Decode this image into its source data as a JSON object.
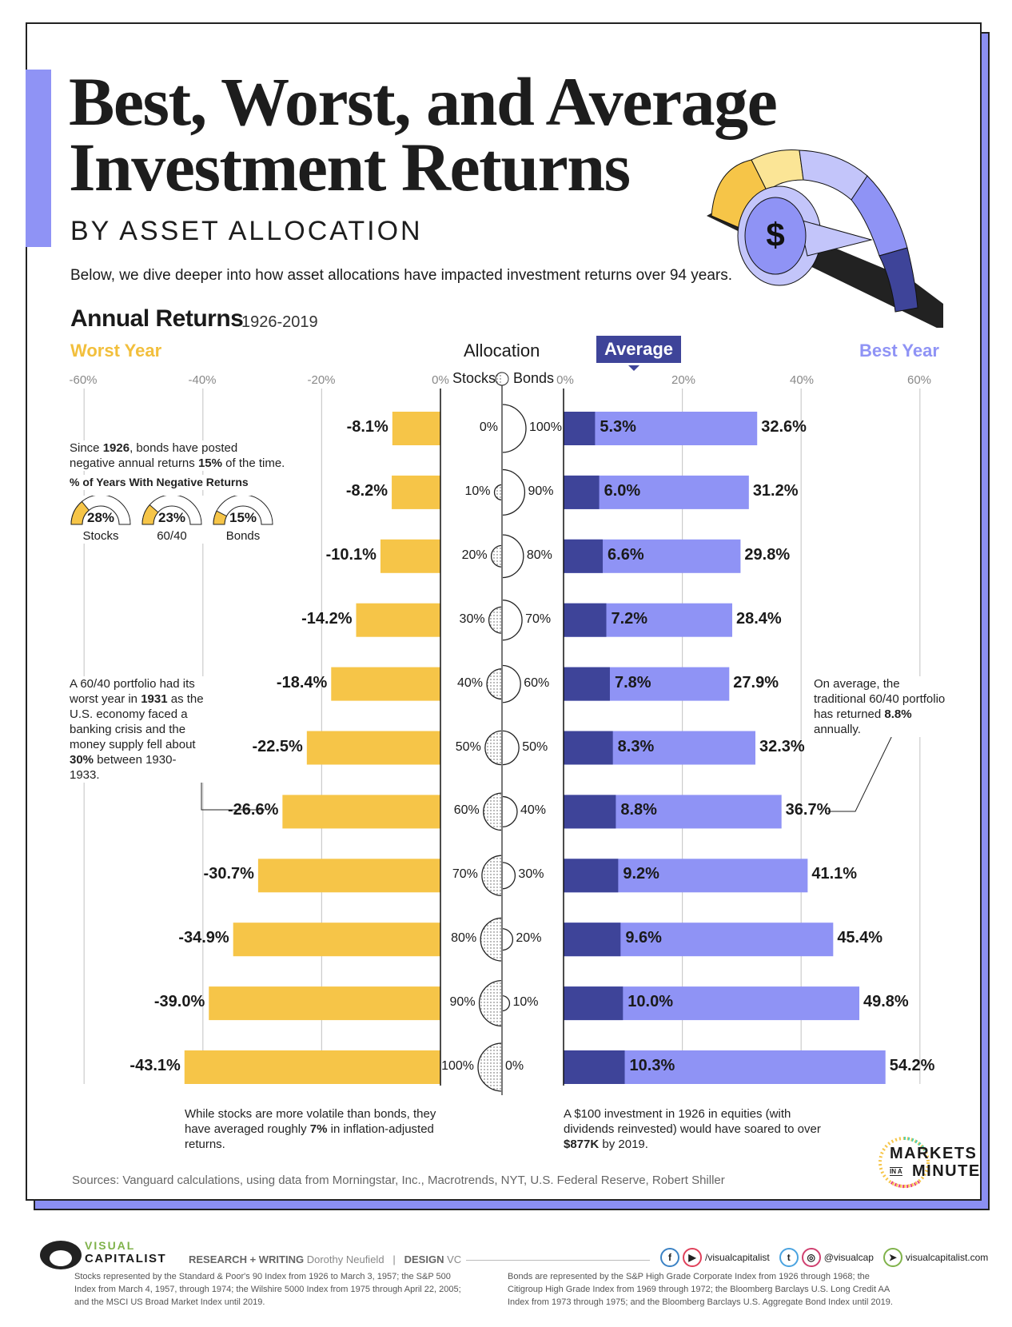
{
  "title_line1": "Best, Worst, and Average",
  "title_line2": "Investment Returns",
  "subtitle": "BY ASSET ALLOCATION",
  "intro": "Below, we dive deeper into how asset allocations have impacted investment returns over 94 years.",
  "section_title": "Annual Returns",
  "section_years": "1926-2019",
  "headers": {
    "worst": "Worst Year",
    "allocation": "Allocation",
    "average": "Average",
    "best": "Best Year",
    "stocks": "Stocks",
    "bonds": "Bonds"
  },
  "colors": {
    "worst": "#f6c548",
    "average": "#3e4499",
    "best": "#8f93f5",
    "accent": "#8f93f5"
  },
  "chart_data": {
    "type": "bar",
    "title": "Annual Returns",
    "subtitle": "1926-2019",
    "left_axis_ticks": [
      "-60%",
      "-40%",
      "-20%",
      "0%"
    ],
    "right_axis_ticks": [
      "0%",
      "20%",
      "40%",
      "60%"
    ],
    "left_xlim": [
      -60,
      0
    ],
    "right_xlim": [
      0,
      60
    ],
    "grid": true,
    "categories": [
      {
        "stocks": "0%",
        "bonds": "100%"
      },
      {
        "stocks": "10%",
        "bonds": "90%"
      },
      {
        "stocks": "20%",
        "bonds": "80%"
      },
      {
        "stocks": "30%",
        "bonds": "70%"
      },
      {
        "stocks": "40%",
        "bonds": "60%"
      },
      {
        "stocks": "50%",
        "bonds": "50%"
      },
      {
        "stocks": "60%",
        "bonds": "40%"
      },
      {
        "stocks": "70%",
        "bonds": "30%"
      },
      {
        "stocks": "80%",
        "bonds": "20%"
      },
      {
        "stocks": "90%",
        "bonds": "10%"
      },
      {
        "stocks": "100%",
        "bonds": "0%"
      }
    ],
    "stocks_share": [
      0,
      10,
      20,
      30,
      40,
      50,
      60,
      70,
      80,
      90,
      100
    ],
    "series": [
      {
        "name": "Worst Year",
        "values": [
          -8.1,
          -8.2,
          -10.1,
          -14.2,
          -18.4,
          -22.5,
          -26.6,
          -30.7,
          -34.9,
          -39.0,
          -43.1
        ],
        "labels": [
          "-8.1%",
          "-8.2%",
          "-10.1%",
          "-14.2%",
          "-18.4%",
          "-22.5%",
          "-26.6%",
          "-30.7%",
          "-34.9%",
          "-39.0%",
          "-43.1%"
        ]
      },
      {
        "name": "Average",
        "values": [
          5.3,
          6.0,
          6.6,
          7.2,
          7.8,
          8.3,
          8.8,
          9.2,
          9.6,
          10.0,
          10.3
        ],
        "labels": [
          "5.3%",
          "6.0%",
          "6.6%",
          "7.2%",
          "7.8%",
          "8.3%",
          "8.8%",
          "9.2%",
          "9.6%",
          "10.0%",
          "10.3%"
        ]
      },
      {
        "name": "Best Year",
        "values": [
          32.6,
          31.2,
          29.8,
          28.4,
          27.9,
          32.3,
          36.7,
          41.1,
          45.4,
          49.8,
          54.2
        ],
        "labels": [
          "32.6%",
          "31.2%",
          "29.8%",
          "28.4%",
          "27.9%",
          "32.3%",
          "36.7%",
          "41.1%",
          "45.4%",
          "49.8%",
          "54.2%"
        ]
      }
    ]
  },
  "notes": {
    "bonds_negative": {
      "pre": "Since ",
      "b1": "1926",
      "mid": ", bonds have posted negative annual returns ",
      "b2": "15%",
      "post": " of the time."
    },
    "gauges_title": "% of Years With Negative Returns",
    "gauges": [
      {
        "label": "Stocks",
        "value": 28,
        "text": "28%"
      },
      {
        "label": "60/40",
        "value": 23,
        "text": "23%"
      },
      {
        "label": "Bonds",
        "value": 15,
        "text": "15%"
      }
    ],
    "sixty_forty": {
      "a": "A 60/40 portfolio had its worst year in ",
      "b1": "1931",
      "c": " as the U.S. economy faced a banking crisis and the money supply fell about ",
      "b2": "30%",
      "d": " between 1930-1933."
    },
    "average_note": {
      "a": "On average, the traditional 60/40 portfolio has returned ",
      "b": "8.8%",
      "c": " annually."
    },
    "stocks_note": {
      "a": "While stocks are more volatile than bonds, they have averaged roughly ",
      "b": "7%",
      "c": " in inflation-adjusted returns."
    },
    "investment_note": {
      "a": "A $100 investment in 1926 in equities (with dividends reinvested) would have soared to over ",
      "b": "$877K",
      "c": " by 2019."
    }
  },
  "sources": "Sources: Vanguard calculations, using data from Morningstar, Inc., Macrotrends, NYT, U.S. Federal Reserve, Robert Shiller",
  "brand": {
    "markets": "MARKETS",
    "in_a": "IN A",
    "minute": "MINUTE",
    "vc1": "VISUAL",
    "vc2": "CAPITALIST"
  },
  "credits": {
    "rw_label": "RESEARCH + WRITING",
    "rw_name": "Dorothy Neufield",
    "sep": "|",
    "design_label": "DESIGN",
    "design_name": "VC"
  },
  "social": {
    "fb_yt": "/visualcapitalist",
    "tw_ig": "@visualcap",
    "web": "visualcapitalist.com"
  },
  "fine_print": {
    "stocks": "Stocks represented by the Standard & Poor's 90 Index from 1926 to March 3, 1957; the S&P 500 Index from March 4, 1957, through 1974; the Wilshire 5000 Index from 1975 through April 22, 2005; and the MSCI US Broad Market Index until 2019.",
    "bonds": "Bonds are represented by the S&P High Grade Corporate Index from 1926 through 1968; the Citigroup High Grade Index from 1969 through 1972; the Bloomberg Barclays U.S. Long Credit AA Index from 1973 through 1975; and the Bloomberg Barclays U.S. Aggregate Bond Index until 2019."
  }
}
